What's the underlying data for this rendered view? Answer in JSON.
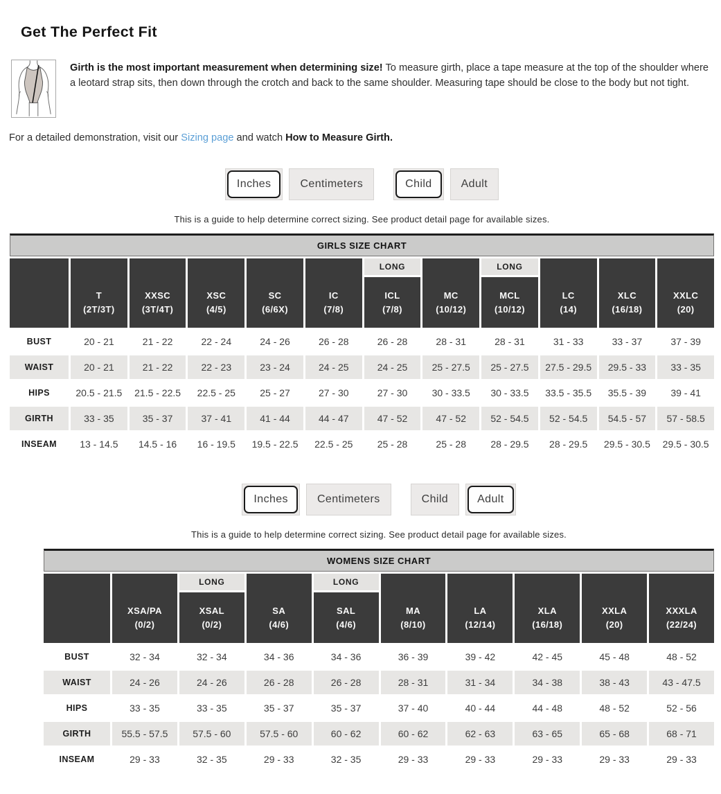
{
  "page": {
    "title": "Get The Perfect Fit",
    "girth_note_bold": "Girth is the most important measurement when determining size!",
    "girth_note_rest": " To measure girth, place a tape measure at the top of the shoulder where a leotard strap sits, then down through the crotch and back to the same shoulder. Measuring tape should be close to the body but not tight.",
    "demo_prefix": "For a detailed demonstration, visit our ",
    "demo_link": "Sizing page",
    "demo_middle": " and watch ",
    "demo_bold": "How to Measure Girth."
  },
  "sizing_note": "This is a guide to help determine correct sizing. See product detail page for available sizes.",
  "long_label": "LONG",
  "toggle_groups": {
    "girls": {
      "buttons": [
        {
          "label": "Inches",
          "selected": true
        },
        {
          "label": "Centimeters",
          "selected": false
        },
        {
          "label": "Child",
          "selected": true
        },
        {
          "label": "Adult",
          "selected": false
        }
      ]
    },
    "womens": {
      "buttons": [
        {
          "label": "Inches",
          "selected": true
        },
        {
          "label": "Centimeters",
          "selected": false
        },
        {
          "label": "Child",
          "selected": false
        },
        {
          "label": "Adult",
          "selected": true
        }
      ]
    }
  },
  "chart_data": [
    {
      "type": "table",
      "title": "GIRLS SIZE CHART",
      "columns": [
        {
          "name": "T",
          "size": "(2T/3T)",
          "long": false
        },
        {
          "name": "XXSC",
          "size": "(3T/4T)",
          "long": false
        },
        {
          "name": "XSC",
          "size": "(4/5)",
          "long": false
        },
        {
          "name": "SC",
          "size": "(6/6X)",
          "long": false
        },
        {
          "name": "IC",
          "size": "(7/8)",
          "long": false
        },
        {
          "name": "ICL",
          "size": "(7/8)",
          "long": true
        },
        {
          "name": "MC",
          "size": "(10/12)",
          "long": false
        },
        {
          "name": "MCL",
          "size": "(10/12)",
          "long": true
        },
        {
          "name": "LC",
          "size": "(14)",
          "long": false
        },
        {
          "name": "XLC",
          "size": "(16/18)",
          "long": false
        },
        {
          "name": "XXLC",
          "size": "(20)",
          "long": false
        }
      ],
      "rows": [
        {
          "label": "BUST",
          "values": [
            "20 - 21",
            "21 - 22",
            "22 - 24",
            "24 - 26",
            "26 - 28",
            "26 - 28",
            "28 - 31",
            "28 - 31",
            "31 - 33",
            "33 - 37",
            "37 - 39"
          ]
        },
        {
          "label": "WAIST",
          "values": [
            "20 - 21",
            "21 - 22",
            "22 - 23",
            "23 - 24",
            "24 - 25",
            "24 - 25",
            "25 - 27.5",
            "25 - 27.5",
            "27.5 - 29.5",
            "29.5 - 33",
            "33 - 35"
          ]
        },
        {
          "label": "HIPS",
          "values": [
            "20.5 - 21.5",
            "21.5 - 22.5",
            "22.5 - 25",
            "25 - 27",
            "27 - 30",
            "27 - 30",
            "30 - 33.5",
            "30 - 33.5",
            "33.5 - 35.5",
            "35.5 - 39",
            "39 - 41"
          ]
        },
        {
          "label": "GIRTH",
          "values": [
            "33 - 35",
            "35 - 37",
            "37 - 41",
            "41 - 44",
            "44 - 47",
            "47 - 52",
            "47 - 52",
            "52 - 54.5",
            "52 - 54.5",
            "54.5 - 57",
            "57 - 58.5"
          ]
        },
        {
          "label": "INSEAM",
          "values": [
            "13 - 14.5",
            "14.5 - 16",
            "16 - 19.5",
            "19.5 - 22.5",
            "22.5 - 25",
            "25 - 28",
            "25 - 28",
            "28 - 29.5",
            "28 - 29.5",
            "29.5 - 30.5",
            "29.5 - 30.5"
          ]
        }
      ]
    },
    {
      "type": "table",
      "title": "WOMENS SIZE CHART",
      "columns": [
        {
          "name": "XSA/PA",
          "size": "(0/2)",
          "long": false
        },
        {
          "name": "XSAL",
          "size": "(0/2)",
          "long": true
        },
        {
          "name": "SA",
          "size": "(4/6)",
          "long": false
        },
        {
          "name": "SAL",
          "size": "(4/6)",
          "long": true
        },
        {
          "name": "MA",
          "size": "(8/10)",
          "long": false
        },
        {
          "name": "LA",
          "size": "(12/14)",
          "long": false
        },
        {
          "name": "XLA",
          "size": "(16/18)",
          "long": false
        },
        {
          "name": "XXLA",
          "size": "(20)",
          "long": false
        },
        {
          "name": "XXXLA",
          "size": "(22/24)",
          "long": false
        }
      ],
      "rows": [
        {
          "label": "BUST",
          "values": [
            "32 - 34",
            "32 - 34",
            "34 - 36",
            "34 - 36",
            "36 - 39",
            "39 - 42",
            "42 - 45",
            "45 - 48",
            "48 - 52"
          ]
        },
        {
          "label": "WAIST",
          "values": [
            "24 - 26",
            "24 - 26",
            "26 - 28",
            "26 - 28",
            "28 - 31",
            "31 - 34",
            "34 - 38",
            "38 - 43",
            "43 - 47.5"
          ]
        },
        {
          "label": "HIPS",
          "values": [
            "33 - 35",
            "33 - 35",
            "35 - 37",
            "35 - 37",
            "37 - 40",
            "40 - 44",
            "44 - 48",
            "48 - 52",
            "52 - 56"
          ]
        },
        {
          "label": "GIRTH",
          "values": [
            "55.5 - 57.5",
            "57.5 - 60",
            "57.5 - 60",
            "60 - 62",
            "60 - 62",
            "62 - 63",
            "63 - 65",
            "65 - 68",
            "68 - 71"
          ]
        },
        {
          "label": "INSEAM",
          "values": [
            "29 - 33",
            "32 - 35",
            "29 - 33",
            "32 - 35",
            "29 - 33",
            "29 - 33",
            "29 - 33",
            "29 - 33",
            "29 - 33"
          ]
        }
      ]
    }
  ],
  "colors": {
    "link_blue": "#5b9fd6",
    "header_dark": "#3b3b3b",
    "title_bar_gray": "#cbcbca",
    "row_shade_gray": "#e7e6e4",
    "long_strip_gray": "#e4e3e1",
    "button_gray": "#eceae9",
    "selected_border": "#191919"
  }
}
